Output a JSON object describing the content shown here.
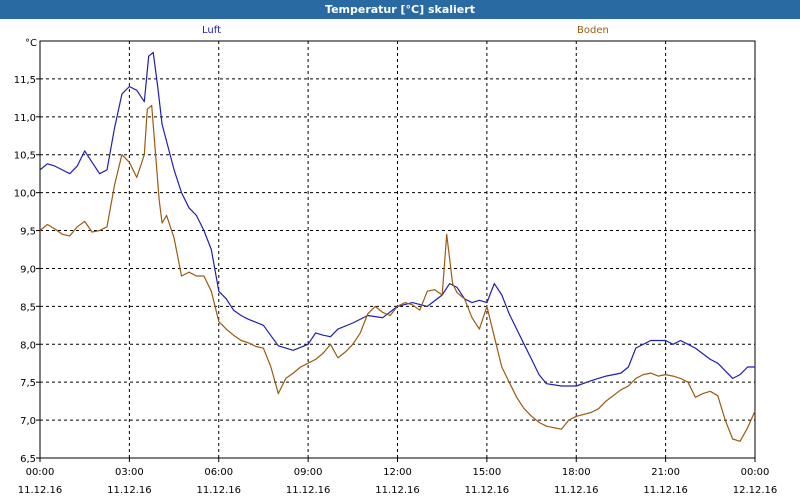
{
  "window": {
    "title": "Temperatur [°C] skaliert"
  },
  "chart_data": {
    "type": "line",
    "title": "Temperatur [°C] skaliert",
    "ylabel": "°C",
    "xlabel": "",
    "xlim": [
      0,
      24
    ],
    "ylim": [
      6.5,
      12.0
    ],
    "grid": true,
    "grid_style": "dashed",
    "yticks": [
      "6,5",
      "7,0",
      "7,5",
      "8,0",
      "8,5",
      "9,0",
      "9,5",
      "10,0",
      "10,5",
      "11,0",
      "11,5"
    ],
    "xticks": [
      {
        "time": "00:00",
        "date": "11.12.16"
      },
      {
        "time": "03:00",
        "date": "11.12.16"
      },
      {
        "time": "06:00",
        "date": "11.12.16"
      },
      {
        "time": "09:00",
        "date": "11.12.16"
      },
      {
        "time": "12:00",
        "date": "11.12.16"
      },
      {
        "time": "15:00",
        "date": "11.12.16"
      },
      {
        "time": "18:00",
        "date": "11.12.16"
      },
      {
        "time": "21:00",
        "date": "11.12.16"
      },
      {
        "time": "00:00",
        "date": "12.12.16"
      }
    ],
    "series": [
      {
        "name": "Luft",
        "color": "#1f1fb4",
        "points": [
          [
            0.0,
            10.3
          ],
          [
            0.25,
            10.38
          ],
          [
            0.5,
            10.35
          ],
          [
            0.75,
            10.3
          ],
          [
            1.0,
            10.25
          ],
          [
            1.25,
            10.35
          ],
          [
            1.5,
            10.55
          ],
          [
            1.75,
            10.4
          ],
          [
            2.0,
            10.25
          ],
          [
            2.25,
            10.3
          ],
          [
            2.5,
            10.85
          ],
          [
            2.75,
            11.3
          ],
          [
            3.0,
            11.4
          ],
          [
            3.25,
            11.35
          ],
          [
            3.5,
            11.2
          ],
          [
            3.65,
            11.8
          ],
          [
            3.8,
            11.85
          ],
          [
            3.95,
            11.4
          ],
          [
            4.1,
            10.9
          ],
          [
            4.3,
            10.6
          ],
          [
            4.5,
            10.3
          ],
          [
            4.75,
            10.0
          ],
          [
            5.0,
            9.8
          ],
          [
            5.25,
            9.7
          ],
          [
            5.5,
            9.5
          ],
          [
            5.75,
            9.25
          ],
          [
            6.0,
            8.7
          ],
          [
            6.25,
            8.6
          ],
          [
            6.5,
            8.45
          ],
          [
            6.75,
            8.38
          ],
          [
            7.0,
            8.33
          ],
          [
            7.5,
            8.25
          ],
          [
            8.0,
            7.98
          ],
          [
            8.5,
            7.92
          ],
          [
            9.0,
            8.0
          ],
          [
            9.25,
            8.15
          ],
          [
            9.5,
            8.12
          ],
          [
            9.75,
            8.1
          ],
          [
            10.0,
            8.2
          ],
          [
            10.5,
            8.28
          ],
          [
            11.0,
            8.38
          ],
          [
            11.5,
            8.35
          ],
          [
            12.0,
            8.5
          ],
          [
            12.5,
            8.55
          ],
          [
            13.0,
            8.5
          ],
          [
            13.5,
            8.65
          ],
          [
            13.75,
            8.8
          ],
          [
            14.0,
            8.75
          ],
          [
            14.25,
            8.6
          ],
          [
            14.5,
            8.55
          ],
          [
            14.75,
            8.58
          ],
          [
            15.0,
            8.55
          ],
          [
            15.25,
            8.8
          ],
          [
            15.5,
            8.65
          ],
          [
            15.75,
            8.4
          ],
          [
            16.0,
            8.2
          ],
          [
            16.25,
            8.0
          ],
          [
            16.5,
            7.8
          ],
          [
            16.75,
            7.6
          ],
          [
            17.0,
            7.48
          ],
          [
            17.5,
            7.45
          ],
          [
            18.0,
            7.45
          ],
          [
            18.5,
            7.52
          ],
          [
            19.0,
            7.58
          ],
          [
            19.5,
            7.62
          ],
          [
            19.75,
            7.7
          ],
          [
            20.0,
            7.95
          ],
          [
            20.5,
            8.05
          ],
          [
            21.0,
            8.05
          ],
          [
            21.25,
            8.0
          ],
          [
            21.5,
            8.05
          ],
          [
            21.75,
            8.0
          ],
          [
            22.0,
            7.95
          ],
          [
            22.5,
            7.8
          ],
          [
            22.75,
            7.75
          ],
          [
            23.0,
            7.65
          ],
          [
            23.25,
            7.55
          ],
          [
            23.5,
            7.6
          ],
          [
            23.75,
            7.7
          ],
          [
            24.0,
            7.7
          ]
        ]
      },
      {
        "name": "Boden",
        "color": "#9b5b10",
        "points": [
          [
            0.0,
            9.5
          ],
          [
            0.25,
            9.58
          ],
          [
            0.5,
            9.52
          ],
          [
            0.75,
            9.45
          ],
          [
            1.0,
            9.43
          ],
          [
            1.25,
            9.55
          ],
          [
            1.5,
            9.62
          ],
          [
            1.75,
            9.48
          ],
          [
            2.0,
            9.5
          ],
          [
            2.25,
            9.55
          ],
          [
            2.5,
            10.1
          ],
          [
            2.75,
            10.5
          ],
          [
            3.0,
            10.4
          ],
          [
            3.25,
            10.2
          ],
          [
            3.5,
            10.5
          ],
          [
            3.6,
            11.1
          ],
          [
            3.75,
            11.15
          ],
          [
            3.9,
            10.4
          ],
          [
            4.0,
            9.9
          ],
          [
            4.1,
            9.6
          ],
          [
            4.25,
            9.7
          ],
          [
            4.5,
            9.4
          ],
          [
            4.75,
            8.9
          ],
          [
            5.0,
            8.95
          ],
          [
            5.25,
            8.9
          ],
          [
            5.5,
            8.9
          ],
          [
            5.75,
            8.7
          ],
          [
            6.0,
            8.3
          ],
          [
            6.25,
            8.2
          ],
          [
            6.5,
            8.12
          ],
          [
            6.75,
            8.05
          ],
          [
            7.0,
            8.02
          ],
          [
            7.25,
            7.97
          ],
          [
            7.5,
            7.95
          ],
          [
            7.75,
            7.7
          ],
          [
            8.0,
            7.35
          ],
          [
            8.25,
            7.55
          ],
          [
            8.5,
            7.62
          ],
          [
            8.75,
            7.7
          ],
          [
            9.0,
            7.75
          ],
          [
            9.25,
            7.8
          ],
          [
            9.5,
            7.88
          ],
          [
            9.75,
            8.0
          ],
          [
            10.0,
            7.82
          ],
          [
            10.25,
            7.9
          ],
          [
            10.5,
            8.0
          ],
          [
            10.75,
            8.15
          ],
          [
            11.0,
            8.4
          ],
          [
            11.25,
            8.5
          ],
          [
            11.5,
            8.42
          ],
          [
            11.75,
            8.38
          ],
          [
            12.0,
            8.5
          ],
          [
            12.25,
            8.55
          ],
          [
            12.5,
            8.52
          ],
          [
            12.75,
            8.45
          ],
          [
            13.0,
            8.7
          ],
          [
            13.25,
            8.72
          ],
          [
            13.5,
            8.65
          ],
          [
            13.65,
            9.45
          ],
          [
            13.85,
            8.8
          ],
          [
            14.0,
            8.68
          ],
          [
            14.25,
            8.6
          ],
          [
            14.5,
            8.35
          ],
          [
            14.75,
            8.2
          ],
          [
            15.0,
            8.5
          ],
          [
            15.25,
            8.1
          ],
          [
            15.5,
            7.7
          ],
          [
            15.75,
            7.5
          ],
          [
            16.0,
            7.3
          ],
          [
            16.25,
            7.15
          ],
          [
            16.5,
            7.05
          ],
          [
            16.75,
            6.97
          ],
          [
            17.0,
            6.92
          ],
          [
            17.25,
            6.9
          ],
          [
            17.5,
            6.88
          ],
          [
            17.75,
            7.0
          ],
          [
            18.0,
            7.05
          ],
          [
            18.5,
            7.1
          ],
          [
            18.75,
            7.15
          ],
          [
            19.0,
            7.25
          ],
          [
            19.5,
            7.4
          ],
          [
            19.75,
            7.45
          ],
          [
            20.0,
            7.55
          ],
          [
            20.25,
            7.6
          ],
          [
            20.5,
            7.62
          ],
          [
            20.75,
            7.58
          ],
          [
            21.0,
            7.6
          ],
          [
            21.25,
            7.58
          ],
          [
            21.5,
            7.55
          ],
          [
            21.75,
            7.5
          ],
          [
            22.0,
            7.3
          ],
          [
            22.25,
            7.35
          ],
          [
            22.5,
            7.38
          ],
          [
            22.75,
            7.32
          ],
          [
            23.0,
            7.0
          ],
          [
            23.25,
            6.75
          ],
          [
            23.5,
            6.72
          ],
          [
            23.75,
            6.9
          ],
          [
            24.0,
            7.12
          ]
        ]
      }
    ]
  }
}
